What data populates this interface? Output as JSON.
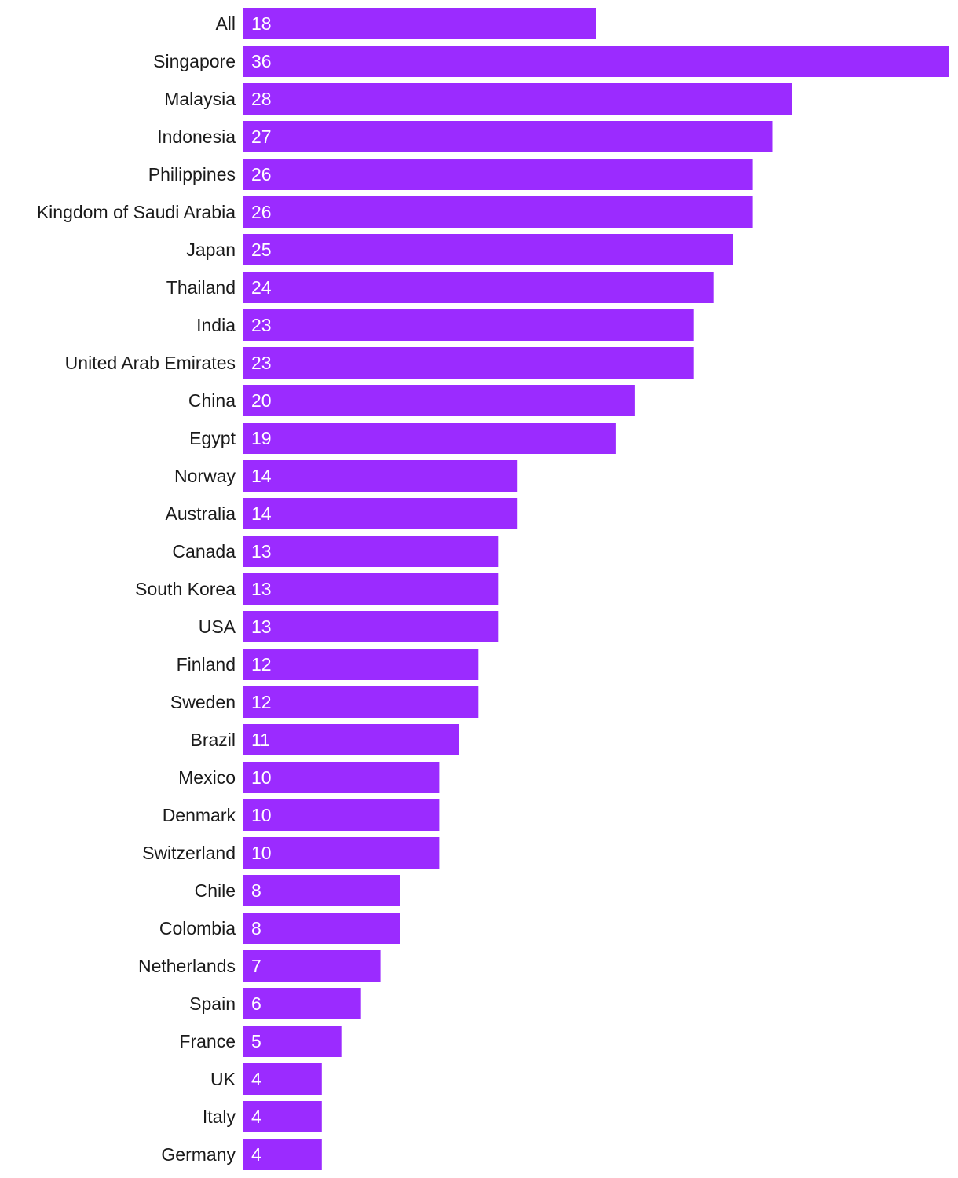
{
  "chart_data": {
    "type": "bar",
    "orientation": "horizontal",
    "title": "",
    "xlabel": "",
    "ylabel": "",
    "categories": [
      "All",
      "Singapore",
      "Malaysia",
      "Indonesia",
      "Philippines",
      "Kingdom of Saudi Arabia",
      "Japan",
      "Thailand",
      "India",
      "United Arab Emirates",
      "China",
      "Egypt",
      "Norway",
      "Australia",
      "Canada",
      "South Korea",
      "USA",
      "Finland",
      "Sweden",
      "Brazil",
      "Mexico",
      "Denmark",
      "Switzerland",
      "Chile",
      "Colombia",
      "Netherlands",
      "Spain",
      "France",
      "UK",
      "Italy",
      "Germany"
    ],
    "values": [
      18,
      36,
      28,
      27,
      26,
      26,
      25,
      24,
      23,
      23,
      20,
      19,
      14,
      14,
      13,
      13,
      13,
      12,
      12,
      11,
      10,
      10,
      10,
      8,
      8,
      7,
      6,
      5,
      4,
      4,
      4
    ],
    "xlim": [
      0,
      36
    ],
    "grid": false,
    "legend": "none",
    "colors": {
      "bar": "#9b2bff",
      "category_text": "#1a1a1a",
      "value_text": "#ffffff"
    }
  }
}
